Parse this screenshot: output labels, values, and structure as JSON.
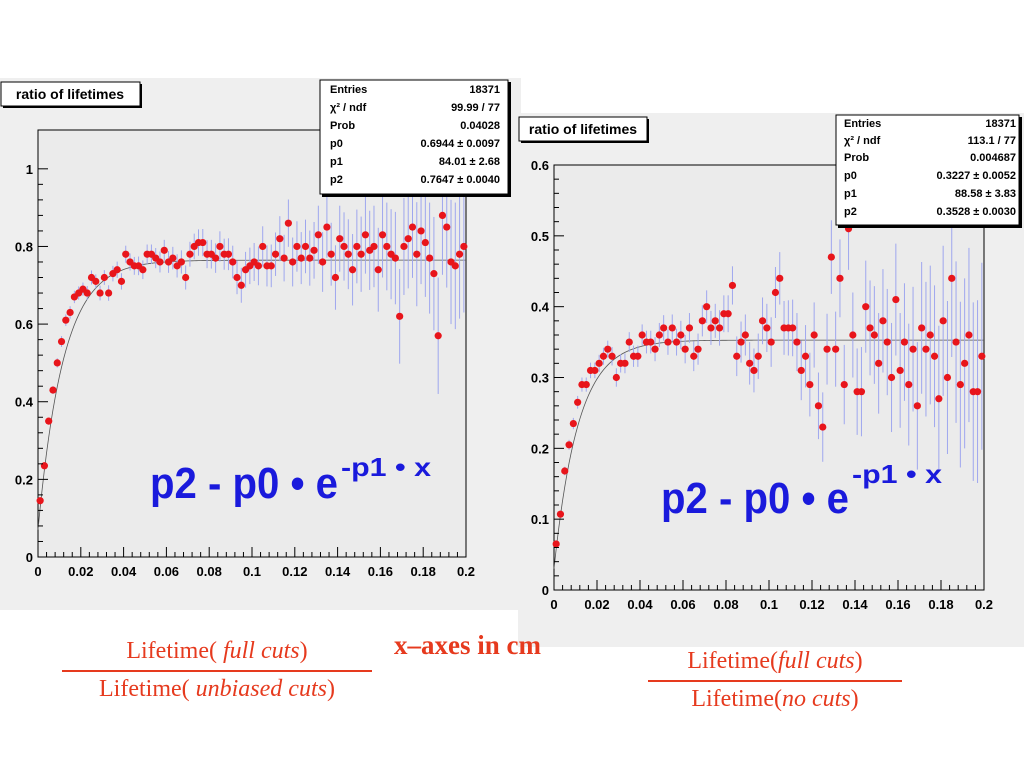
{
  "charts": [
    {
      "title": "ratio of lifetimes",
      "stats": [
        {
          "key": "Entries",
          "value": "18371"
        },
        {
          "key": "χ² / ndf",
          "value": "99.99 / 77"
        },
        {
          "key": "Prob",
          "value": "0.04028"
        },
        {
          "key": "p0",
          "value": "0.6944 ± 0.0097"
        },
        {
          "key": "p1",
          "value": "84.01 ± 2.68"
        },
        {
          "key": "p2",
          "value": "0.7647 ± 0.0040"
        }
      ],
      "formula": {
        "base": "p2 - p0 • e",
        "exponent": "-p1 • x"
      },
      "caption": {
        "num_a": "Lifetime(",
        "num_b": "full cuts",
        "num_c": ")",
        "den_a": "Lifetime(",
        "den_b": "unbiased cuts",
        "den_c": ")"
      }
    },
    {
      "title": "ratio of lifetimes",
      "stats": [
        {
          "key": "Entries",
          "value": "18371"
        },
        {
          "key": "χ² / ndf",
          "value": "113.1 / 77"
        },
        {
          "key": "Prob",
          "value": "0.004687"
        },
        {
          "key": "p0",
          "value": "0.3227 ± 0.0052"
        },
        {
          "key": "p1",
          "value": "88.58 ± 3.83"
        },
        {
          "key": "p2",
          "value": "0.3528 ± 0.0030"
        }
      ],
      "formula": {
        "base": "p2 - p0 • e",
        "exponent": "-p1 • x"
      },
      "caption": {
        "num_a": "Lifetime(",
        "num_b": "full cuts",
        "num_c": ")",
        "den_a": "Lifetime(",
        "den_b": "no cuts",
        "den_c": ")"
      }
    }
  ],
  "note": "x–axes in cm",
  "colors": {
    "marker": "#e8151b",
    "formula": "#1a1adc",
    "caption": "#e63a1e",
    "errorbar": "#9ea6ee",
    "frame_bg": "#efefef",
    "plot_bg": "#ebebeb"
  },
  "chart_data": [
    {
      "type": "scatter",
      "title": "ratio of lifetimes",
      "xlim": [
        0,
        0.2
      ],
      "ylim": [
        0,
        1.1
      ],
      "xticks": [
        0,
        0.02,
        0.04,
        0.06,
        0.08,
        0.1,
        0.12,
        0.14,
        0.16,
        0.18,
        0.2
      ],
      "xtick_labels": [
        "0",
        "0.02",
        "0.04",
        "0.06",
        "0.08",
        "0.1",
        "0.12",
        "0.14",
        "0.16",
        "0.18",
        "0.2"
      ],
      "yticks": [
        0,
        0.2,
        0.4,
        0.6,
        0.8,
        1
      ],
      "ytick_labels": [
        "0",
        "0.2",
        "0.4",
        "0.6",
        "0.8",
        "1"
      ],
      "fit": {
        "p0": 0.6944,
        "p1": 84.01,
        "p2": 0.7647
      },
      "x": [
        0.001,
        0.003,
        0.005,
        0.007,
        0.009,
        0.011,
        0.013,
        0.015,
        0.017,
        0.019,
        0.021,
        0.023,
        0.025,
        0.027,
        0.029,
        0.031,
        0.033,
        0.035,
        0.037,
        0.039,
        0.041,
        0.043,
        0.045,
        0.047,
        0.049,
        0.051,
        0.053,
        0.055,
        0.057,
        0.059,
        0.061,
        0.063,
        0.065,
        0.067,
        0.069,
        0.071,
        0.073,
        0.075,
        0.077,
        0.079,
        0.081,
        0.083,
        0.085,
        0.087,
        0.089,
        0.091,
        0.093,
        0.095,
        0.097,
        0.099,
        0.101,
        0.103,
        0.105,
        0.107,
        0.109,
        0.111,
        0.113,
        0.115,
        0.117,
        0.119,
        0.121,
        0.123,
        0.125,
        0.127,
        0.129,
        0.131,
        0.133,
        0.135,
        0.137,
        0.139,
        0.141,
        0.143,
        0.145,
        0.147,
        0.149,
        0.151,
        0.153,
        0.155,
        0.157,
        0.159,
        0.161,
        0.163,
        0.165,
        0.167,
        0.169,
        0.171,
        0.173,
        0.175,
        0.177,
        0.179,
        0.181,
        0.183,
        0.185,
        0.187,
        0.189,
        0.191,
        0.193,
        0.195,
        0.197,
        0.199
      ],
      "y": [
        0.145,
        0.235,
        0.35,
        0.43,
        0.5,
        0.555,
        0.61,
        0.63,
        0.67,
        0.68,
        0.69,
        0.68,
        0.72,
        0.71,
        0.68,
        0.72,
        0.68,
        0.73,
        0.74,
        0.71,
        0.78,
        0.76,
        0.75,
        0.75,
        0.74,
        0.78,
        0.78,
        0.77,
        0.76,
        0.79,
        0.76,
        0.77,
        0.75,
        0.76,
        0.72,
        0.78,
        0.8,
        0.81,
        0.81,
        0.78,
        0.78,
        0.77,
        0.8,
        0.78,
        0.78,
        0.76,
        0.72,
        0.7,
        0.74,
        0.75,
        0.76,
        0.75,
        0.8,
        0.75,
        0.75,
        0.78,
        0.82,
        0.77,
        0.86,
        0.76,
        0.8,
        0.77,
        0.8,
        0.77,
        0.79,
        0.83,
        0.76,
        0.85,
        0.78,
        0.72,
        0.82,
        0.8,
        0.78,
        0.74,
        0.8,
        0.78,
        0.83,
        0.79,
        0.8,
        0.74,
        0.83,
        0.8,
        0.78,
        0.77,
        0.62,
        0.8,
        0.82,
        0.85,
        0.78,
        0.84,
        0.81,
        0.77,
        0.73,
        0.57,
        0.88,
        0.85,
        0.76,
        0.75,
        0.78,
        0.8
      ],
      "err": [
        0.005,
        0.006,
        0.008,
        0.01,
        0.012,
        0.014,
        0.015,
        0.016,
        0.016,
        0.017,
        0.017,
        0.018,
        0.018,
        0.018,
        0.019,
        0.019,
        0.02,
        0.02,
        0.021,
        0.021,
        0.022,
        0.022,
        0.023,
        0.024,
        0.024,
        0.025,
        0.025,
        0.026,
        0.027,
        0.027,
        0.028,
        0.029,
        0.03,
        0.03,
        0.031,
        0.032,
        0.033,
        0.034,
        0.035,
        0.036,
        0.037,
        0.038,
        0.039,
        0.04,
        0.041,
        0.042,
        0.043,
        0.045,
        0.046,
        0.047,
        0.049,
        0.05,
        0.052,
        0.053,
        0.055,
        0.056,
        0.058,
        0.06,
        0.061,
        0.063,
        0.065,
        0.067,
        0.069,
        0.071,
        0.073,
        0.075,
        0.077,
        0.079,
        0.081,
        0.083,
        0.085,
        0.088,
        0.09,
        0.092,
        0.095,
        0.097,
        0.1,
        0.102,
        0.105,
        0.108,
        0.11,
        0.113,
        0.116,
        0.119,
        0.122,
        0.125,
        0.128,
        0.131,
        0.134,
        0.137,
        0.14,
        0.143,
        0.146,
        0.15,
        0.153,
        0.156,
        0.16,
        0.163,
        0.166,
        0.17
      ]
    },
    {
      "type": "scatter",
      "title": "ratio of lifetimes",
      "xlim": [
        0,
        0.2
      ],
      "ylim": [
        0,
        0.6
      ],
      "xticks": [
        0,
        0.02,
        0.04,
        0.06,
        0.08,
        0.1,
        0.12,
        0.14,
        0.16,
        0.18,
        0.2
      ],
      "xtick_labels": [
        "0",
        "0.02",
        "0.04",
        "0.06",
        "0.08",
        "0.1",
        "0.12",
        "0.14",
        "0.16",
        "0.18",
        "0.2"
      ],
      "yticks": [
        0,
        0.1,
        0.2,
        0.3,
        0.4,
        0.5,
        0.6
      ],
      "ytick_labels": [
        "0",
        "0.1",
        "0.2",
        "0.3",
        "0.4",
        "0.5",
        "0.6"
      ],
      "fit": {
        "p0": 0.3227,
        "p1": 88.58,
        "p2": 0.3528
      },
      "x": [
        0.001,
        0.003,
        0.005,
        0.007,
        0.009,
        0.011,
        0.013,
        0.015,
        0.017,
        0.019,
        0.021,
        0.023,
        0.025,
        0.027,
        0.029,
        0.031,
        0.033,
        0.035,
        0.037,
        0.039,
        0.041,
        0.043,
        0.045,
        0.047,
        0.049,
        0.051,
        0.053,
        0.055,
        0.057,
        0.059,
        0.061,
        0.063,
        0.065,
        0.067,
        0.069,
        0.071,
        0.073,
        0.075,
        0.077,
        0.079,
        0.081,
        0.083,
        0.085,
        0.087,
        0.089,
        0.091,
        0.093,
        0.095,
        0.097,
        0.099,
        0.101,
        0.103,
        0.105,
        0.107,
        0.109,
        0.111,
        0.113,
        0.115,
        0.117,
        0.119,
        0.121,
        0.123,
        0.125,
        0.127,
        0.129,
        0.131,
        0.133,
        0.135,
        0.137,
        0.139,
        0.141,
        0.143,
        0.145,
        0.147,
        0.149,
        0.151,
        0.153,
        0.155,
        0.157,
        0.159,
        0.161,
        0.163,
        0.165,
        0.167,
        0.169,
        0.171,
        0.173,
        0.175,
        0.177,
        0.179,
        0.181,
        0.183,
        0.185,
        0.187,
        0.189,
        0.191,
        0.193,
        0.195,
        0.197,
        0.199
      ],
      "y": [
        0.065,
        0.107,
        0.168,
        0.205,
        0.235,
        0.265,
        0.29,
        0.29,
        0.31,
        0.31,
        0.32,
        0.33,
        0.34,
        0.33,
        0.3,
        0.32,
        0.32,
        0.35,
        0.33,
        0.33,
        0.36,
        0.35,
        0.35,
        0.34,
        0.36,
        0.37,
        0.35,
        0.37,
        0.35,
        0.36,
        0.34,
        0.37,
        0.33,
        0.34,
        0.38,
        0.4,
        0.37,
        0.38,
        0.37,
        0.39,
        0.39,
        0.43,
        0.33,
        0.35,
        0.36,
        0.32,
        0.31,
        0.33,
        0.38,
        0.37,
        0.35,
        0.42,
        0.44,
        0.37,
        0.37,
        0.37,
        0.35,
        0.31,
        0.33,
        0.29,
        0.36,
        0.26,
        0.23,
        0.34,
        0.47,
        0.34,
        0.44,
        0.29,
        0.51,
        0.36,
        0.28,
        0.28,
        0.4,
        0.37,
        0.36,
        0.32,
        0.38,
        0.35,
        0.3,
        0.41,
        0.31,
        0.35,
        0.29,
        0.34,
        0.26,
        0.37,
        0.34,
        0.36,
        0.33,
        0.27,
        0.38,
        0.3,
        0.44,
        0.35,
        0.29,
        0.32,
        0.36,
        0.28,
        0.28,
        0.33
      ],
      "err": [
        0.004,
        0.005,
        0.006,
        0.007,
        0.008,
        0.009,
        0.01,
        0.01,
        0.011,
        0.011,
        0.012,
        0.012,
        0.012,
        0.013,
        0.013,
        0.013,
        0.014,
        0.014,
        0.015,
        0.015,
        0.015,
        0.016,
        0.016,
        0.017,
        0.017,
        0.018,
        0.018,
        0.019,
        0.019,
        0.02,
        0.02,
        0.021,
        0.021,
        0.022,
        0.022,
        0.023,
        0.024,
        0.024,
        0.025,
        0.026,
        0.026,
        0.027,
        0.028,
        0.029,
        0.029,
        0.03,
        0.031,
        0.032,
        0.033,
        0.034,
        0.035,
        0.036,
        0.037,
        0.038,
        0.039,
        0.04,
        0.041,
        0.042,
        0.044,
        0.045,
        0.046,
        0.047,
        0.049,
        0.05,
        0.052,
        0.053,
        0.055,
        0.056,
        0.058,
        0.06,
        0.061,
        0.063,
        0.065,
        0.067,
        0.069,
        0.071,
        0.073,
        0.075,
        0.077,
        0.079,
        0.081,
        0.083,
        0.086,
        0.088,
        0.09,
        0.093,
        0.095,
        0.098,
        0.1,
        0.103,
        0.106,
        0.108,
        0.111,
        0.114,
        0.117,
        0.12,
        0.123,
        0.126,
        0.129,
        0.132
      ]
    }
  ]
}
